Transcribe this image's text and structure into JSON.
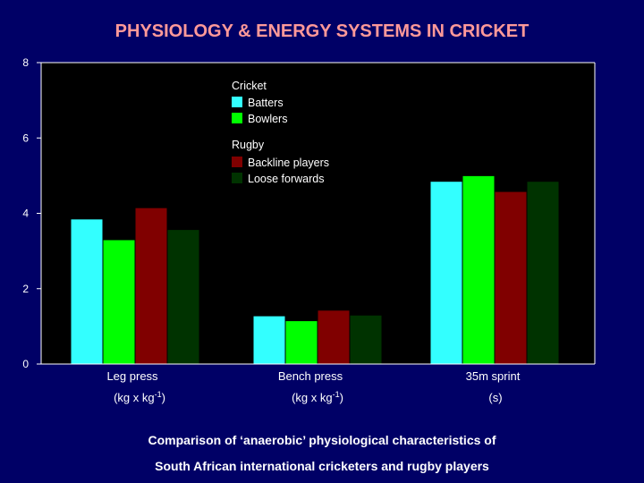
{
  "title": "PHYSIOLOGY & ENERGY SYSTEMS IN CRICKET",
  "caption_line1": "Comparison of ‘anaerobic’ physiological characteristics of",
  "caption_line2": "South African international cricketers and rugby players",
  "chart_data": {
    "type": "bar",
    "categories": [
      "Leg press",
      "Bench press",
      "35m sprint"
    ],
    "category_units": [
      "(kg x kg-1)",
      "(kg x kg-1)",
      "(s)"
    ],
    "series": [
      {
        "name": "Batters",
        "group": "Cricket",
        "color": "#33ffff",
        "values": [
          3.85,
          1.28,
          4.85
        ]
      },
      {
        "name": "Bowlers",
        "group": "Cricket",
        "color": "#00ff00",
        "values": [
          3.3,
          1.15,
          5.0
        ]
      },
      {
        "name": "Backline players",
        "group": "Rugby",
        "color": "#800000",
        "values": [
          4.15,
          1.43,
          4.58
        ]
      },
      {
        "name": "Loose forwards",
        "group": "Rugby",
        "color": "#003300",
        "values": [
          3.57,
          1.3,
          4.85
        ]
      }
    ],
    "legend_groups": [
      "Cricket",
      "Rugby"
    ],
    "yticks": [
      0,
      2,
      4,
      6,
      8
    ],
    "ylim": [
      0,
      8
    ],
    "plot_background": "#000000",
    "grid": false
  }
}
